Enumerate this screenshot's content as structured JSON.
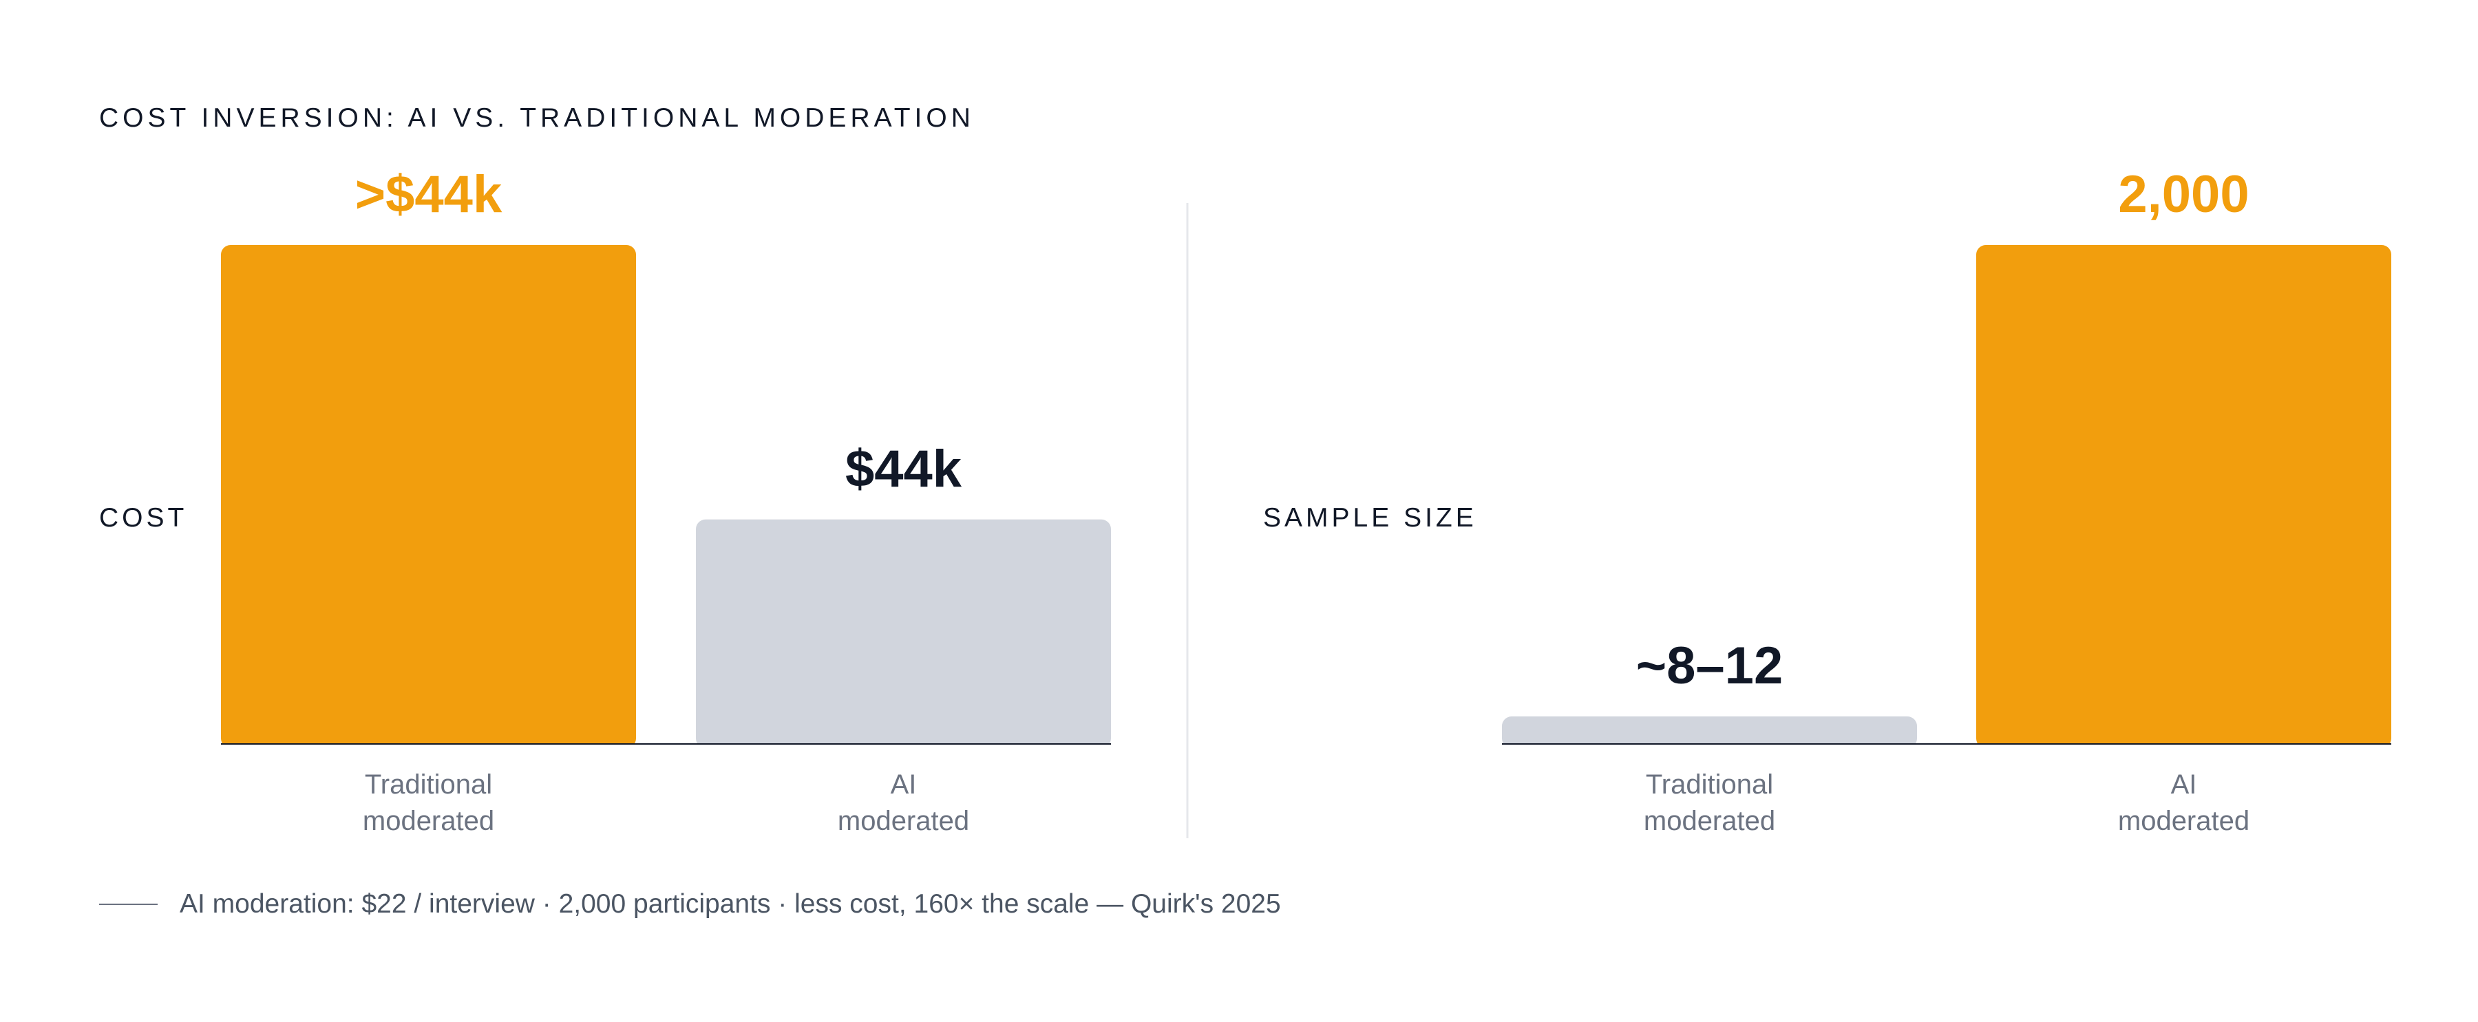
{
  "title": "COST INVERSION: AI VS. TRADITIONAL MODERATION",
  "colors": {
    "accent": "#F29E0D",
    "muted_bar": "#D1D5DD",
    "dark_text": "#111827",
    "tick_text": "#6B7280",
    "divider": "#E5E7EB"
  },
  "chart_data": [
    {
      "type": "bar",
      "ylabel": "COST",
      "categories": [
        "Traditional\nmoderated",
        "AI\nmoderated"
      ],
      "values": [
        100,
        45
      ],
      "ylim": [
        0,
        100
      ],
      "data_labels": [
        ">$44k",
        "$44k"
      ],
      "bar_colors": [
        "#F29E0D",
        "#D1D5DD"
      ],
      "label_colors": [
        "#F29E0D",
        "#111827"
      ]
    },
    {
      "type": "bar",
      "ylabel": "SAMPLE SIZE",
      "categories": [
        "Traditional\nmoderated",
        "AI\nmoderated"
      ],
      "values": [
        12,
        2000
      ],
      "ylim": [
        0,
        2000
      ],
      "data_labels": [
        "~8–12",
        "2,000"
      ],
      "bar_colors": [
        "#D1D5DD",
        "#F29E0D"
      ],
      "label_colors": [
        "#111827",
        "#F29E0D"
      ]
    }
  ],
  "footnote": "AI moderation: $22 / interview · 2,000 participants · less cost, 160× the scale — Quirk's 2025"
}
